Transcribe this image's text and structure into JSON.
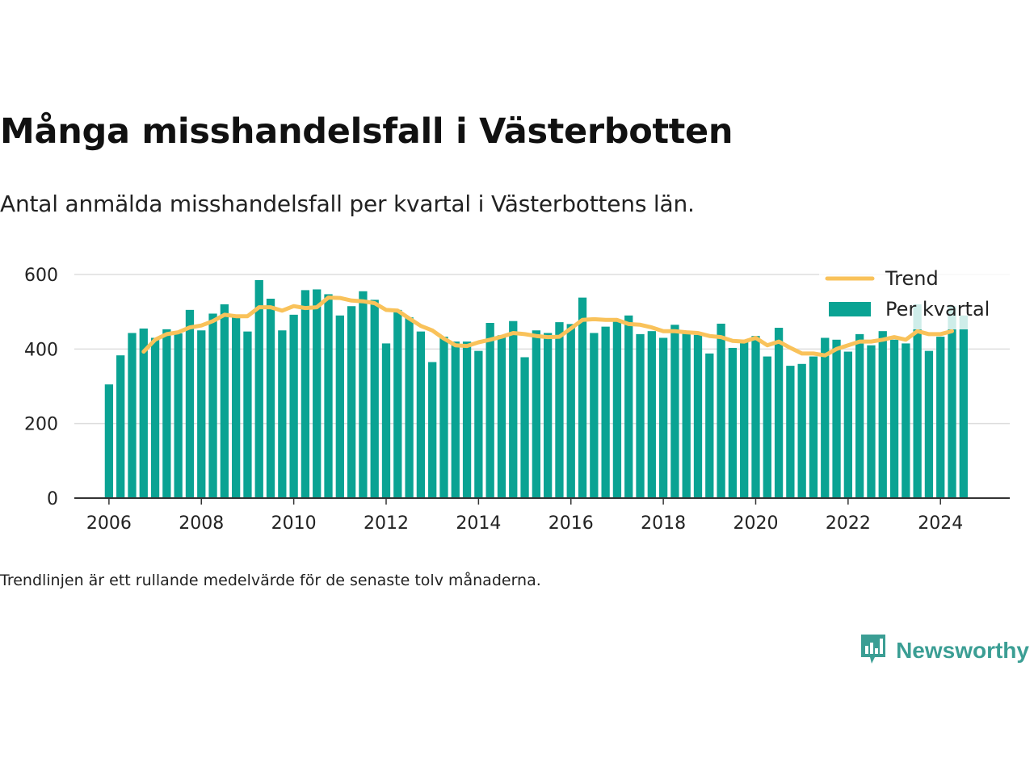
{
  "title": "Många misshandelsfall i Västerbotten",
  "subtitle": "Antal anmälda misshandelsfall per kvartal i Västerbottens län.",
  "note": "Trendlinjen är ett rullande medelvärde för de senaste tolv månaderna.",
  "brand": {
    "name": "Newsworthy",
    "icon": "newsworthy-logo-icon"
  },
  "colors": {
    "bar": "#0aa393",
    "trend": "#f9c25a",
    "grid": "#dddddd",
    "axis": "#333333"
  },
  "chart_data": {
    "type": "bar",
    "ylim": [
      0,
      600
    ],
    "yticks": [
      0,
      200,
      400,
      600
    ],
    "xlim": [
      2005.25,
      2025.5
    ],
    "xticks": [
      2006,
      2008,
      2010,
      2012,
      2014,
      2016,
      2018,
      2020,
      2022,
      2024
    ],
    "grid": true,
    "legend_position": "top-right",
    "series": [
      {
        "name": "Per kvartal",
        "kind": "bar",
        "x": [
          2006.0,
          2006.25,
          2006.5,
          2006.75,
          2007.0,
          2007.25,
          2007.5,
          2007.75,
          2008.0,
          2008.25,
          2008.5,
          2008.75,
          2009.0,
          2009.25,
          2009.5,
          2009.75,
          2010.0,
          2010.25,
          2010.5,
          2010.75,
          2011.0,
          2011.25,
          2011.5,
          2011.75,
          2012.0,
          2012.25,
          2012.5,
          2012.75,
          2013.0,
          2013.25,
          2013.5,
          2013.75,
          2014.0,
          2014.25,
          2014.5,
          2014.75,
          2015.0,
          2015.25,
          2015.5,
          2015.75,
          2016.0,
          2016.25,
          2016.5,
          2016.75,
          2017.0,
          2017.25,
          2017.5,
          2017.75,
          2018.0,
          2018.25,
          2018.5,
          2018.75,
          2019.0,
          2019.25,
          2019.5,
          2019.75,
          2020.0,
          2020.25,
          2020.5,
          2020.75,
          2021.0,
          2021.25,
          2021.5,
          2021.75,
          2022.0,
          2022.25,
          2022.5,
          2022.75,
          2023.0,
          2023.25,
          2023.5,
          2023.75,
          2024.0,
          2024.25,
          2024.5
        ],
        "values": [
          305,
          383,
          443,
          455,
          430,
          453,
          442,
          505,
          450,
          495,
          520,
          490,
          447,
          585,
          535,
          450,
          492,
          558,
          560,
          547,
          490,
          515,
          555,
          532,
          415,
          505,
          485,
          447,
          365,
          433,
          420,
          420,
          395,
          470,
          437,
          475,
          378,
          450,
          443,
          472,
          467,
          538,
          443,
          460,
          475,
          490,
          440,
          448,
          430,
          465,
          448,
          438,
          388,
          468,
          403,
          425,
          435,
          380,
          457,
          355,
          360,
          380,
          430,
          425,
          393,
          440,
          410,
          448,
          425,
          415,
          520,
          395,
          433,
          515,
          490
        ]
      },
      {
        "name": "Trend",
        "kind": "line",
        "x": [
          2006.75,
          2007.0,
          2007.25,
          2007.5,
          2007.75,
          2008.0,
          2008.25,
          2008.5,
          2008.75,
          2009.0,
          2009.25,
          2009.5,
          2009.75,
          2010.0,
          2010.25,
          2010.5,
          2010.75,
          2011.0,
          2011.25,
          2011.5,
          2011.75,
          2012.0,
          2012.25,
          2012.5,
          2012.75,
          2013.0,
          2013.25,
          2013.5,
          2013.75,
          2014.0,
          2014.25,
          2014.5,
          2014.75,
          2015.0,
          2015.25,
          2015.5,
          2015.75,
          2016.0,
          2016.25,
          2016.5,
          2016.75,
          2017.0,
          2017.25,
          2017.5,
          2017.75,
          2018.0,
          2018.25,
          2018.5,
          2018.75,
          2019.0,
          2019.25,
          2019.5,
          2019.75,
          2020.0,
          2020.25,
          2020.5,
          2020.75,
          2021.0,
          2021.25,
          2021.5,
          2021.75,
          2022.0,
          2022.25,
          2022.5,
          2022.75,
          2023.0,
          2023.25,
          2023.5,
          2023.75,
          2024.0,
          2024.25
        ],
        "values": [
          393,
          425,
          440,
          445,
          458,
          463,
          475,
          492,
          488,
          488,
          512,
          512,
          503,
          515,
          510,
          512,
          538,
          537,
          530,
          528,
          523,
          505,
          503,
          482,
          462,
          450,
          428,
          410,
          408,
          418,
          425,
          433,
          443,
          440,
          435,
          432,
          433,
          455,
          478,
          480,
          478,
          478,
          467,
          465,
          458,
          448,
          448,
          445,
          443,
          435,
          432,
          422,
          420,
          430,
          410,
          420,
          403,
          388,
          388,
          383,
          400,
          410,
          420,
          420,
          425,
          432,
          425,
          448,
          440,
          440,
          448
        ]
      }
    ]
  }
}
